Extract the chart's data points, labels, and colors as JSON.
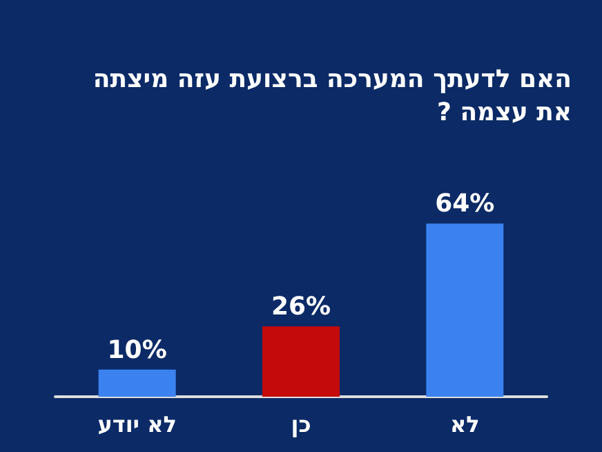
{
  "chart_data": {
    "type": "bar",
    "title": "האם לדעתך המערכה ברצועת עזה מיצתה את עצמה ?",
    "categories": [
      "לא יודע",
      "כן",
      "לא"
    ],
    "values": [
      10,
      26,
      64
    ],
    "colors": [
      "#3b82f0",
      "#c40a0a",
      "#3b82f0"
    ],
    "value_labels": [
      "10%",
      "26%",
      "64%"
    ],
    "grid": false
  }
}
